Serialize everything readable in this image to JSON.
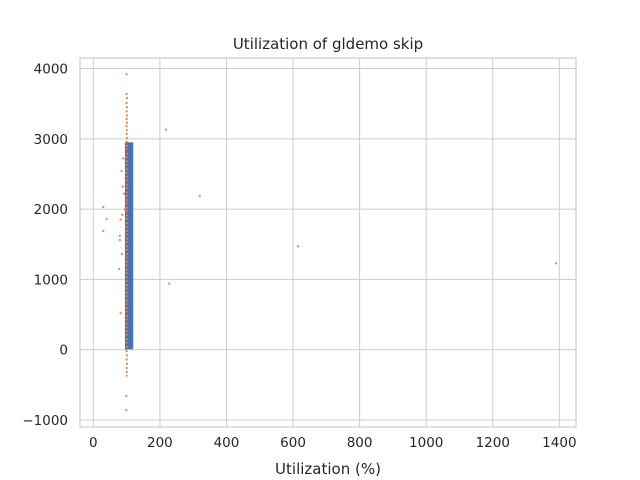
{
  "chart_data": {
    "type": "scatter",
    "title": "Utilization of gldemo skip",
    "xlabel": "Utilization (%)",
    "ylabel": "",
    "xlim": [
      -40,
      1450
    ],
    "ylim": [
      -1100,
      4150
    ],
    "xticks": [
      0,
      200,
      400,
      600,
      800,
      1000,
      1200,
      1400
    ],
    "yticks": [
      -1000,
      0,
      1000,
      2000,
      3000,
      4000
    ],
    "grid": true,
    "colors": {
      "bars": "#4c72b0",
      "points": "#dd8452",
      "grid": "#cccccc",
      "axes": "#cccccc"
    },
    "bars": [
      {
        "x0": 95,
        "x1": 120,
        "y0": 0,
        "y1": 2950
      }
    ],
    "points": [
      [
        100,
        3920
      ],
      [
        100,
        3640
      ],
      [
        101,
        3580
      ],
      [
        100,
        3510
      ],
      [
        101,
        3450
      ],
      [
        100,
        3390
      ],
      [
        101,
        3330
      ],
      [
        100,
        3280
      ],
      [
        101,
        3230
      ],
      [
        100,
        3180
      ],
      [
        101,
        3120
      ],
      [
        100,
        3070
      ],
      [
        101,
        3010
      ],
      [
        100,
        2960
      ],
      [
        101,
        2900
      ],
      [
        100,
        2850
      ],
      [
        101,
        2790
      ],
      [
        100,
        2740
      ],
      [
        101,
        2680
      ],
      [
        100,
        2630
      ],
      [
        101,
        2570
      ],
      [
        100,
        2520
      ],
      [
        101,
        2460
      ],
      [
        100,
        2410
      ],
      [
        101,
        2350
      ],
      [
        100,
        2300
      ],
      [
        101,
        2240
      ],
      [
        100,
        2190
      ],
      [
        101,
        2130
      ],
      [
        100,
        2080
      ],
      [
        101,
        2020
      ],
      [
        100,
        1970
      ],
      [
        101,
        1910
      ],
      [
        100,
        1860
      ],
      [
        101,
        1800
      ],
      [
        100,
        1750
      ],
      [
        101,
        1690
      ],
      [
        100,
        1640
      ],
      [
        101,
        1580
      ],
      [
        100,
        1530
      ],
      [
        101,
        1470
      ],
      [
        100,
        1420
      ],
      [
        101,
        1360
      ],
      [
        100,
        1310
      ],
      [
        101,
        1250
      ],
      [
        100,
        1200
      ],
      [
        101,
        1140
      ],
      [
        100,
        1090
      ],
      [
        101,
        1030
      ],
      [
        100,
        980
      ],
      [
        101,
        920
      ],
      [
        100,
        870
      ],
      [
        101,
        810
      ],
      [
        100,
        760
      ],
      [
        101,
        700
      ],
      [
        100,
        650
      ],
      [
        101,
        590
      ],
      [
        100,
        540
      ],
      [
        101,
        480
      ],
      [
        100,
        430
      ],
      [
        101,
        370
      ],
      [
        100,
        320
      ],
      [
        101,
        260
      ],
      [
        100,
        210
      ],
      [
        101,
        150
      ],
      [
        100,
        100
      ],
      [
        101,
        40
      ],
      [
        100,
        -20
      ],
      [
        101,
        -80
      ],
      [
        100,
        -140
      ],
      [
        101,
        -200
      ],
      [
        100,
        -260
      ],
      [
        101,
        -320
      ],
      [
        100,
        -370
      ],
      [
        99,
        -660
      ],
      [
        99,
        -860
      ],
      [
        90,
        2720
      ],
      [
        88,
        2320
      ],
      [
        92,
        2220
      ],
      [
        85,
        2540
      ],
      [
        87,
        1920
      ],
      [
        82,
        1850
      ],
      [
        80,
        1620
      ],
      [
        80,
        1560
      ],
      [
        86,
        1360
      ],
      [
        78,
        1150
      ],
      [
        82,
        520
      ],
      [
        95,
        2000
      ],
      [
        30,
        2030
      ],
      [
        40,
        1860
      ],
      [
        30,
        1690
      ],
      [
        218,
        3130
      ],
      [
        320,
        2190
      ],
      [
        228,
        940
      ],
      [
        615,
        1470
      ],
      [
        1390,
        1230
      ]
    ]
  }
}
